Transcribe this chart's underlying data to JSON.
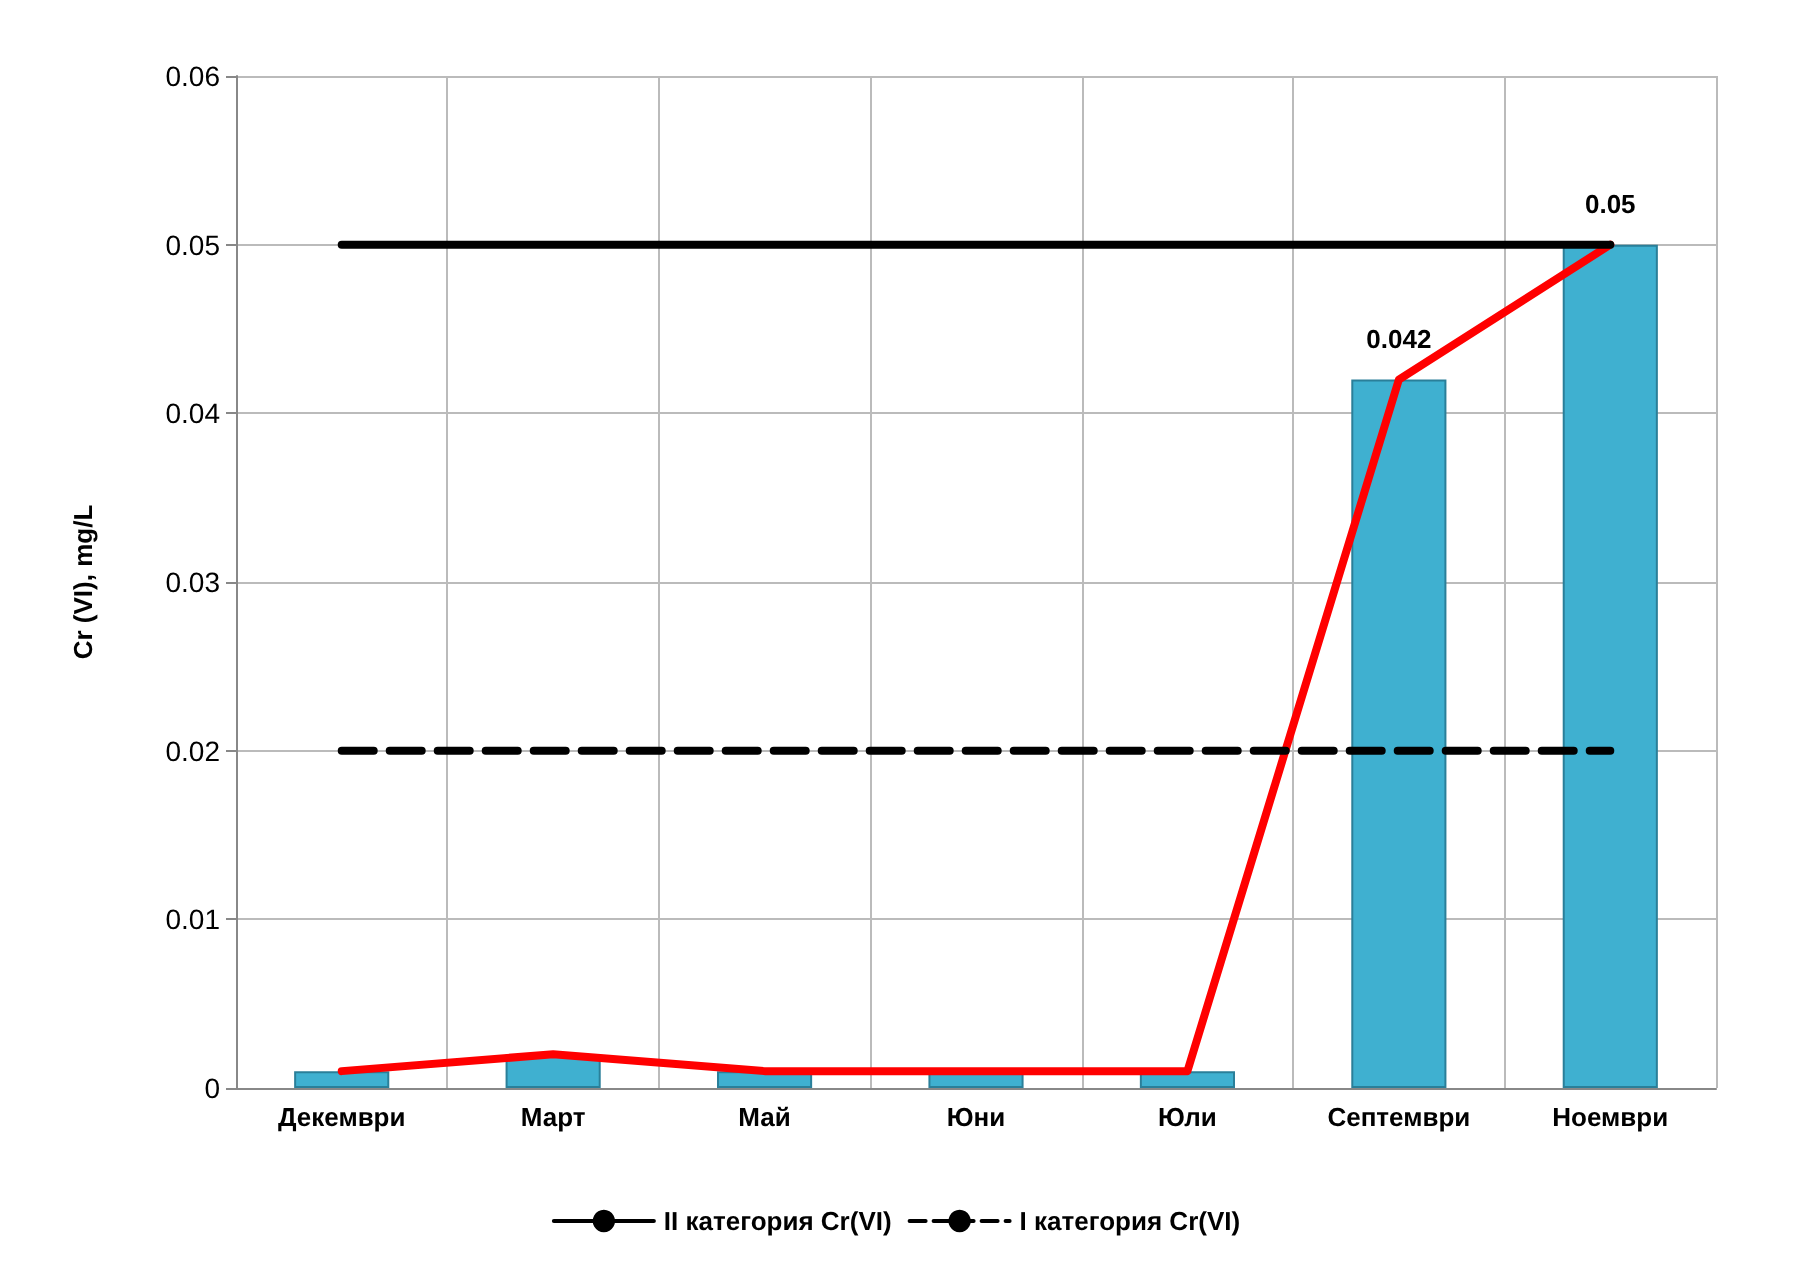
{
  "chart_data": {
    "type": "bar",
    "ylabel": "Cr (VI), mg/L",
    "categories": [
      "Декември",
      "Март",
      "Май",
      "Юни",
      "Юли",
      "Септември",
      "Ноември"
    ],
    "series": [
      {
        "color": "#3fb0d0",
        "values": [
          0.001,
          0.002,
          0.001,
          0.001,
          0.001,
          0.042,
          0.05
        ],
        "value_labels": [
          null,
          null,
          null,
          null,
          null,
          "0.042",
          "0.05"
        ]
      },
      {
        "type": "line",
        "color": "#ff0000",
        "values": [
          0.001,
          0.002,
          0.001,
          0.001,
          0.001,
          0.042,
          0.05
        ]
      },
      {
        "type": "line",
        "name": "II категория Cr(VI)",
        "color": "#000000",
        "line_style": "solid",
        "values": [
          0.05,
          0.05,
          0.05,
          0.05,
          0.05,
          0.05,
          0.05
        ]
      },
      {
        "type": "line",
        "name": "I категория Cr(VI)",
        "color": "#000000",
        "line_style": "dashed",
        "values": [
          0.02,
          0.02,
          0.02,
          0.02,
          0.02,
          0.02,
          0.02
        ]
      }
    ],
    "ylim": [
      0,
      0.06
    ],
    "yticks": [
      0,
      0.01,
      0.02,
      0.03,
      0.04,
      0.05,
      0.06
    ],
    "grid": true,
    "legend": "bottom",
    "marker": "none"
  }
}
